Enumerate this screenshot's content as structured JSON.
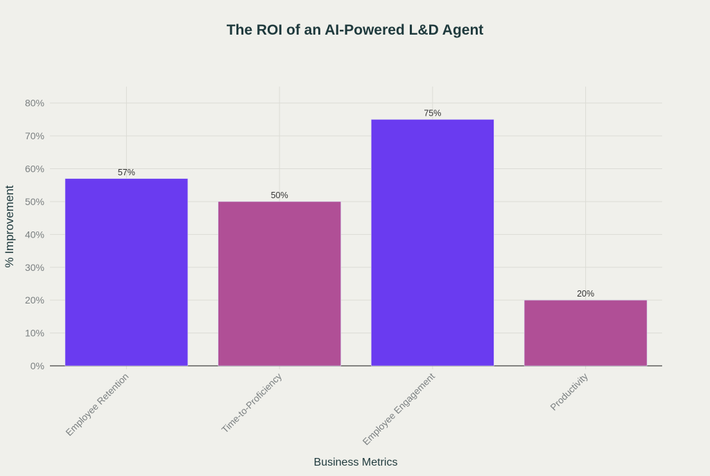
{
  "chart_data": {
    "type": "bar",
    "title": "The ROI of an AI-Powered L&D Agent",
    "xlabel": "Business Metrics",
    "ylabel": "% Improvement",
    "categories": [
      "Employee Retention",
      "Time-to-Proficiency",
      "Employee Engagement",
      "Productivity"
    ],
    "values": [
      57,
      50,
      75,
      20
    ],
    "data_labels": [
      "57%",
      "50%",
      "75%",
      "20%"
    ],
    "bar_colors": [
      "#6a3bf0",
      "#b04f96",
      "#6a3bf0",
      "#b04f96"
    ],
    "ylim": [
      0,
      85
    ],
    "yticks": [
      0,
      10,
      20,
      30,
      40,
      50,
      60,
      70,
      80
    ],
    "ytick_labels": [
      "0%",
      "10%",
      "20%",
      "30%",
      "40%",
      "50%",
      "60%",
      "70%",
      "80%"
    ],
    "grid": true,
    "legend": "none"
  }
}
